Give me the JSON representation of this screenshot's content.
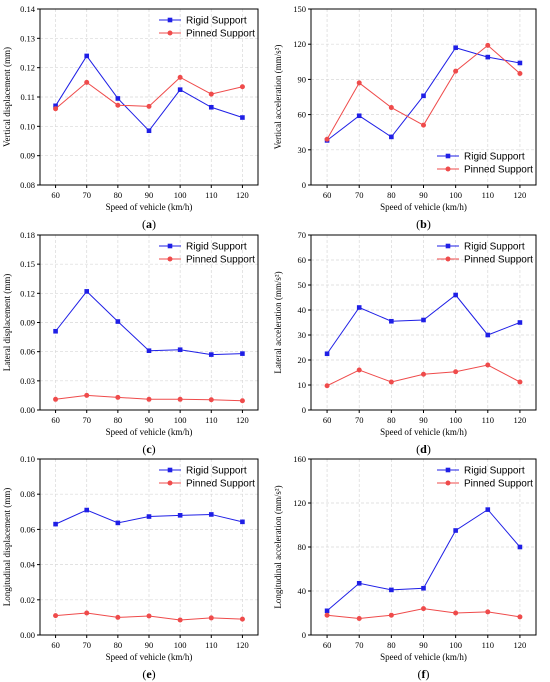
{
  "colors": {
    "rigid": "#1f1fe6",
    "pinned": "#ef4b4b",
    "grid": "#d8d8d8",
    "axis": "#000000"
  },
  "chart_data": [
    {
      "id": "a",
      "panel_label": "a",
      "type": "line",
      "xlabel": "Speed of vehicle (km/h)",
      "ylabel": "Vertical displacement (mm)",
      "x": [
        60,
        70,
        80,
        90,
        100,
        110,
        120
      ],
      "xlim": [
        55,
        125
      ],
      "x_ticks": [
        "60",
        "70",
        "80",
        "90",
        "100",
        "110",
        "120"
      ],
      "ylim": [
        0.08,
        0.14
      ],
      "y_ticks": [
        "0.08",
        "0.09",
        "0.10",
        "0.11",
        "0.12",
        "0.13",
        "0.14"
      ],
      "legend_position": "top-right",
      "grid": true,
      "series": [
        {
          "name": "Rigid Support",
          "marker": "square",
          "values": [
            0.107,
            0.124,
            0.1095,
            0.0985,
            0.1125,
            0.1065,
            0.103
          ]
        },
        {
          "name": "Pinned Support",
          "marker": "circle",
          "values": [
            0.106,
            0.115,
            0.1072,
            0.1068,
            0.1167,
            0.111,
            0.1135
          ]
        }
      ]
    },
    {
      "id": "b",
      "panel_label": "b",
      "type": "line",
      "xlabel": "Speed of vehicle (km/h)",
      "ylabel": "Vertical acceleration (mm/s²)",
      "x": [
        60,
        70,
        80,
        90,
        100,
        110,
        120
      ],
      "xlim": [
        55,
        125
      ],
      "x_ticks": [
        "60",
        "70",
        "80",
        "90",
        "100",
        "110",
        "120"
      ],
      "ylim": [
        0,
        150
      ],
      "y_ticks": [
        "0",
        "30",
        "60",
        "90",
        "120",
        "150"
      ],
      "legend_position": "bottom-right",
      "grid": true,
      "series": [
        {
          "name": "Rigid Support",
          "marker": "square",
          "values": [
            38,
            59,
            41,
            76,
            117,
            109,
            104
          ]
        },
        {
          "name": "Pinned Support",
          "marker": "circle",
          "values": [
            39,
            87,
            66,
            51,
            97,
            119,
            95
          ]
        }
      ]
    },
    {
      "id": "c",
      "panel_label": "c",
      "type": "line",
      "xlabel": "Speed of vehicle (km/h)",
      "ylabel": "Lateral displacement (mm)",
      "x": [
        60,
        70,
        80,
        90,
        100,
        110,
        120
      ],
      "xlim": [
        55,
        125
      ],
      "x_ticks": [
        "60",
        "70",
        "80",
        "90",
        "100",
        "110",
        "120"
      ],
      "ylim": [
        0,
        0.18
      ],
      "y_ticks": [
        "0.00",
        "0.03",
        "0.06",
        "0.09",
        "0.12",
        "0.15",
        "0.18"
      ],
      "legend_position": "top-right",
      "grid": true,
      "series": [
        {
          "name": "Rigid Support",
          "marker": "square",
          "values": [
            0.081,
            0.122,
            0.091,
            0.061,
            0.062,
            0.057,
            0.058
          ]
        },
        {
          "name": "Pinned Support",
          "marker": "circle",
          "values": [
            0.011,
            0.015,
            0.013,
            0.011,
            0.011,
            0.0105,
            0.0095
          ]
        }
      ]
    },
    {
      "id": "d",
      "panel_label": "d",
      "type": "line",
      "xlabel": "Speed of vehicle (km/h)",
      "ylabel": "Lateral acceleration (mm/s²)",
      "x": [
        60,
        70,
        80,
        90,
        100,
        110,
        120
      ],
      "xlim": [
        55,
        125
      ],
      "x_ticks": [
        "60",
        "70",
        "80",
        "90",
        "100",
        "110",
        "120"
      ],
      "ylim": [
        0,
        70
      ],
      "y_ticks": [
        "0",
        "10",
        "20",
        "30",
        "40",
        "50",
        "60",
        "70"
      ],
      "legend_position": "top-right",
      "grid": true,
      "series": [
        {
          "name": "Rigid Support",
          "marker": "square",
          "values": [
            22.5,
            41,
            35.5,
            36,
            46,
            30,
            35
          ]
        },
        {
          "name": "Pinned Support",
          "marker": "circle",
          "values": [
            9.7,
            16,
            11.2,
            14.3,
            15.3,
            18,
            11.2
          ]
        }
      ]
    },
    {
      "id": "e",
      "panel_label": "e",
      "type": "line",
      "xlabel": "Speed of vehicle (km/h)",
      "ylabel": "Longitudinal displacement (mm)",
      "x": [
        60,
        70,
        80,
        90,
        100,
        110,
        120
      ],
      "xlim": [
        55,
        125
      ],
      "x_ticks": [
        "60",
        "70",
        "80",
        "90",
        "100",
        "110",
        "120"
      ],
      "ylim": [
        0,
        0.1
      ],
      "y_ticks": [
        "0.00",
        "0.02",
        "0.04",
        "0.06",
        "0.08",
        "0.10"
      ],
      "legend_position": "top-right",
      "grid": true,
      "series": [
        {
          "name": "Rigid Support",
          "marker": "square",
          "values": [
            0.063,
            0.071,
            0.0637,
            0.0673,
            0.068,
            0.0685,
            0.0643
          ]
        },
        {
          "name": "Pinned Support",
          "marker": "circle",
          "values": [
            0.011,
            0.0125,
            0.01,
            0.0108,
            0.0085,
            0.0097,
            0.009
          ]
        }
      ]
    },
    {
      "id": "f",
      "panel_label": "f",
      "type": "line",
      "xlabel": "Speed of vehicle (km/h)",
      "ylabel": "Longitudinal acceleration (mm/s²)",
      "x": [
        60,
        70,
        80,
        90,
        100,
        110,
        120
      ],
      "xlim": [
        55,
        125
      ],
      "x_ticks": [
        "60",
        "70",
        "80",
        "90",
        "100",
        "110",
        "120"
      ],
      "ylim": [
        0,
        160
      ],
      "y_ticks": [
        "0",
        "40",
        "80",
        "120",
        "160"
      ],
      "legend_position": "top-right",
      "grid": true,
      "series": [
        {
          "name": "Rigid Support",
          "marker": "square",
          "values": [
            22,
            47,
            41,
            42.5,
            95,
            114,
            80
          ]
        },
        {
          "name": "Pinned Support",
          "marker": "circle",
          "values": [
            18,
            15,
            18,
            24,
            20,
            21,
            16.5
          ]
        }
      ]
    }
  ]
}
